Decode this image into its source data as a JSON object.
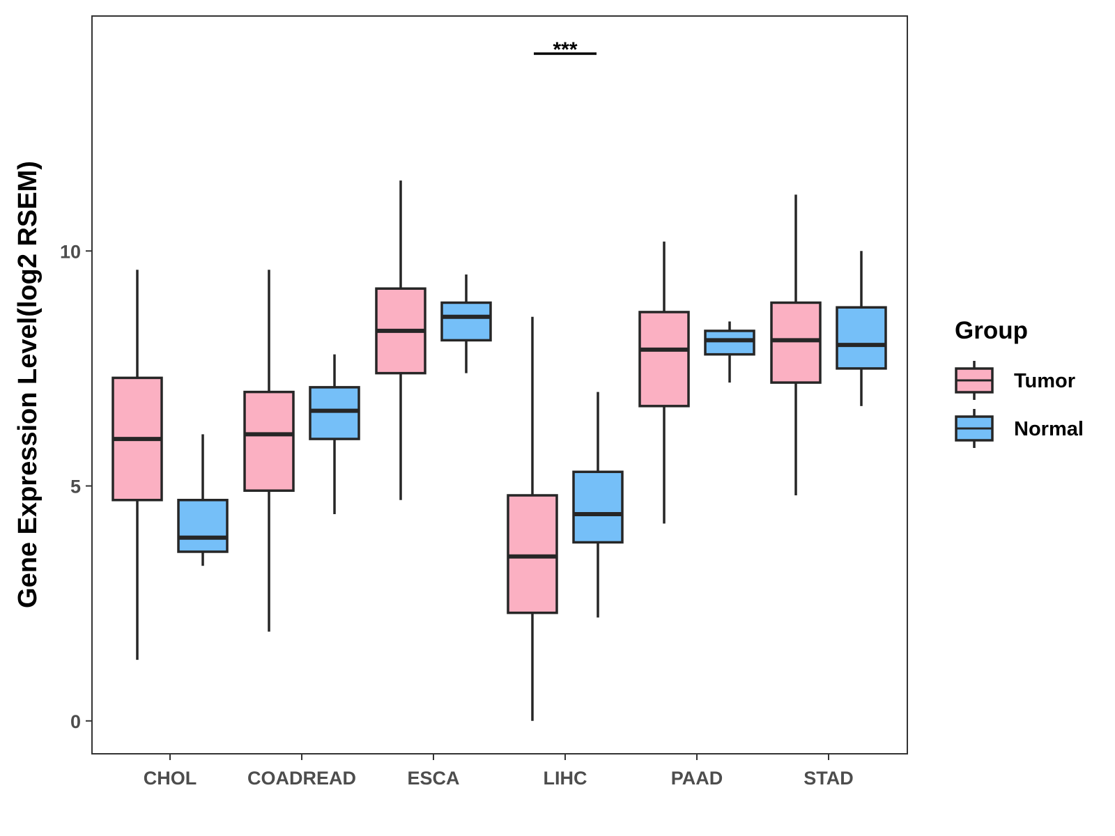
{
  "chart_data": {
    "type": "boxplot",
    "title": "",
    "xlabel": "",
    "ylabel": "Gene Expression Level(log2 RSEM)",
    "ylim": [
      -0.7,
      15
    ],
    "yticks": [
      0,
      5,
      10
    ],
    "ytick_labels": [
      "0",
      "5",
      "10"
    ],
    "categories": [
      "CHOL",
      "COADREAD",
      "ESCA",
      "LIHC",
      "PAAD",
      "STAD"
    ],
    "grid": false,
    "legend": {
      "title": "Group",
      "position": "right",
      "entries": [
        {
          "name": "Tumor",
          "color": "#FBB0C2"
        },
        {
          "name": "Normal",
          "color": "#75BFF8"
        }
      ]
    },
    "series": [
      {
        "name": "Tumor",
        "color": "#FBB0C2",
        "boxes": [
          {
            "category": "CHOL",
            "whisker_low": 1.3,
            "q1": 4.7,
            "median": 6.0,
            "q3": 7.3,
            "whisker_high": 9.6
          },
          {
            "category": "COADREAD",
            "whisker_low": 1.9,
            "q1": 4.9,
            "median": 6.1,
            "q3": 7.0,
            "whisker_high": 9.6
          },
          {
            "category": "ESCA",
            "whisker_low": 4.7,
            "q1": 7.4,
            "median": 8.3,
            "q3": 9.2,
            "whisker_high": 11.5
          },
          {
            "category": "LIHC",
            "whisker_low": 0.0,
            "q1": 2.3,
            "median": 3.5,
            "q3": 4.8,
            "whisker_high": 8.6
          },
          {
            "category": "PAAD",
            "whisker_low": 4.2,
            "q1": 6.7,
            "median": 7.9,
            "q3": 8.7,
            "whisker_high": 10.2
          },
          {
            "category": "STAD",
            "whisker_low": 4.8,
            "q1": 7.2,
            "median": 8.1,
            "q3": 8.9,
            "whisker_high": 11.2
          }
        ]
      },
      {
        "name": "Normal",
        "color": "#75BFF8",
        "boxes": [
          {
            "category": "CHOL",
            "whisker_low": 3.3,
            "q1": 3.6,
            "median": 3.9,
            "q3": 4.7,
            "whisker_high": 6.1
          },
          {
            "category": "COADREAD",
            "whisker_low": 4.4,
            "q1": 6.0,
            "median": 6.6,
            "q3": 7.1,
            "whisker_high": 7.8
          },
          {
            "category": "ESCA",
            "whisker_low": 7.4,
            "q1": 8.1,
            "median": 8.6,
            "q3": 8.9,
            "whisker_high": 9.5
          },
          {
            "category": "LIHC",
            "whisker_low": 2.2,
            "q1": 3.8,
            "median": 4.4,
            "q3": 5.3,
            "whisker_high": 7.0
          },
          {
            "category": "PAAD",
            "whisker_low": 7.2,
            "q1": 7.8,
            "median": 8.1,
            "q3": 8.3,
            "whisker_high": 8.5
          },
          {
            "category": "STAD",
            "whisker_low": 6.7,
            "q1": 7.5,
            "median": 8.0,
            "q3": 8.8,
            "whisker_high": 10.0
          }
        ]
      }
    ],
    "annotations": [
      {
        "category": "LIHC",
        "text": "***",
        "y": 14.2
      }
    ]
  }
}
